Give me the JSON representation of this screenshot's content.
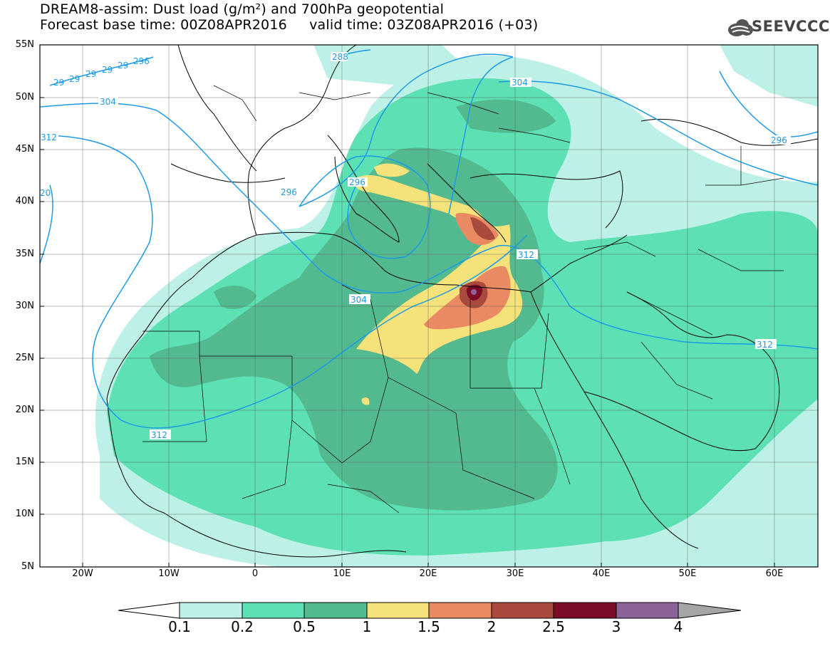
{
  "title": {
    "line1": "DREAM8-assim: Dust load (g/m²) and 700hPa geopotential",
    "line2": "Forecast base time: 00Z08APR2016     valid time: 03Z08APR2016 (+03)"
  },
  "logo": {
    "text": "SEEVCCC",
    "icon": "cloud-logo-icon"
  },
  "axes": {
    "lat_labels": [
      "55N",
      "50N",
      "45N",
      "40N",
      "35N",
      "30N",
      "25N",
      "20N",
      "15N",
      "10N",
      "5N"
    ],
    "lon_labels": [
      "20W",
      "10W",
      "0",
      "10E",
      "20E",
      "30E",
      "40E",
      "50E",
      "60E"
    ]
  },
  "colorbar": {
    "labels": [
      "0.1",
      "0.2",
      "0.5",
      "1",
      "1.5",
      "2",
      "2.5",
      "3",
      "4"
    ],
    "colors": [
      "#bdf0e6",
      "#5ce0b4",
      "#53b98f",
      "#f5e27a",
      "#e98a63",
      "#a84b3c",
      "#7d0c29",
      "#8c6399"
    ],
    "under_color": "#ffffff",
    "over_color": "#a5a5a5"
  },
  "contours": {
    "color": "#1d9be6",
    "labels": [
      "288",
      "304",
      "312",
      "296",
      "304",
      "312",
      "296",
      "304",
      "312",
      "312",
      "296",
      "20",
      "29",
      "29",
      "29",
      "29",
      "29",
      "296"
    ]
  }
}
